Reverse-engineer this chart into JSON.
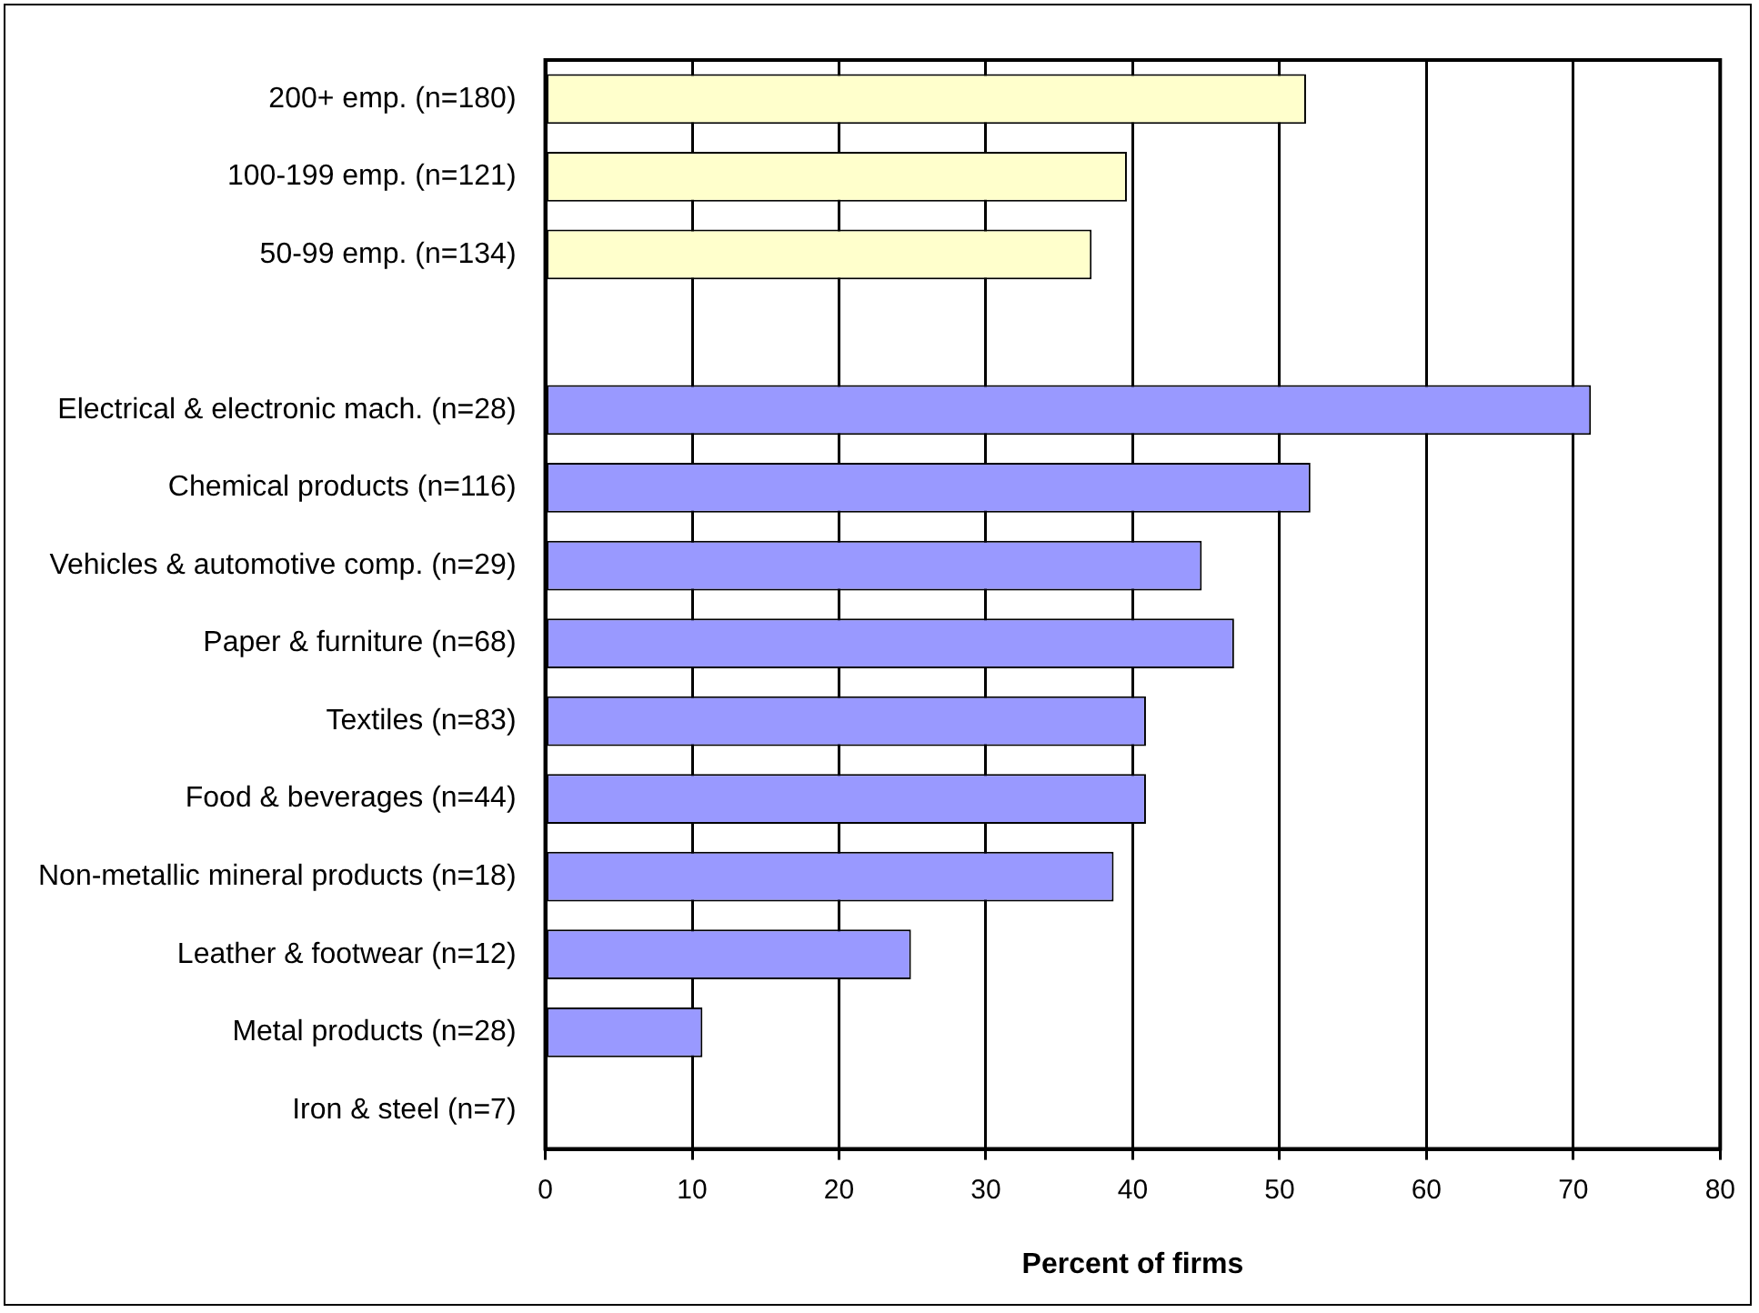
{
  "chart_data": {
    "type": "bar",
    "orientation": "horizontal",
    "xlabel": "Percent of firms",
    "categories": [
      "200+ emp. (n=180)",
      "100-199 emp. (n=121)",
      "50-99 emp. (n=134)",
      null,
      "Electrical & electronic mach. (n=28)",
      "Chemical products (n=116)",
      "Vehicles & automotive comp. (n=29)",
      "Paper & furniture (n=68)",
      "Textiles (n=83)",
      "Food & beverages (n=44)",
      "Non-metallic mineral products (n=18)",
      "Leather & footwear (n=12)",
      "Metal products (n=28)",
      "Iron & steel (n=7)"
    ],
    "values": [
      51.8,
      39.6,
      37.2,
      null,
      71.2,
      52.1,
      44.7,
      46.9,
      40.9,
      40.9,
      38.7,
      24.9,
      10.7,
      0
    ],
    "colors": [
      "#ffffcc",
      "#ffffcc",
      "#ffffcc",
      null,
      "#9999ff",
      "#9999ff",
      "#9999ff",
      "#9999ff",
      "#9999ff",
      "#9999ff",
      "#9999ff",
      "#9999ff",
      "#9999ff",
      "#9999ff"
    ],
    "xlim": [
      0,
      80
    ],
    "xticks": [
      0,
      10,
      20,
      30,
      40,
      50,
      60,
      70,
      80
    ],
    "grid": "x",
    "legend": false
  }
}
